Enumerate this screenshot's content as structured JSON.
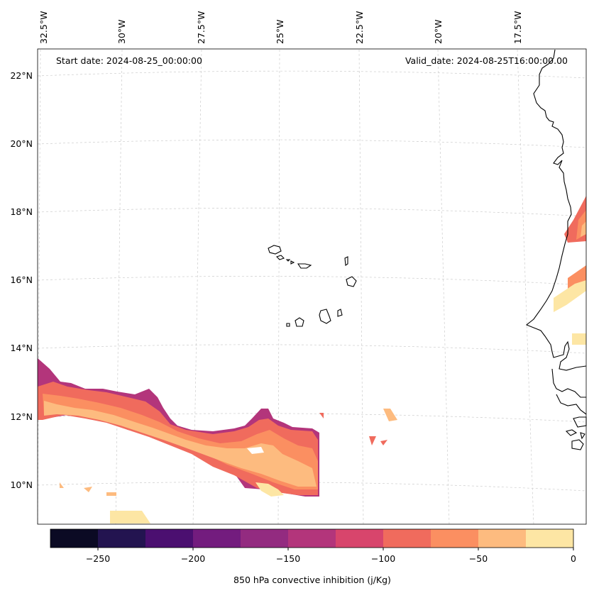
{
  "header": {
    "start_date": "Start date: 2024-08-25_00:00:00",
    "valid_date": "Valid_date: 2024-08-25T16:00:00.00"
  },
  "axes": {
    "lon_labels": [
      "32.5°W",
      "30°W",
      "27.5°W",
      "25°W",
      "22.5°W",
      "20°W",
      "17.5°W"
    ],
    "lat_labels": [
      "22°N",
      "20°N",
      "18°N",
      "16°N",
      "14°N",
      "12°N",
      "10°N"
    ]
  },
  "colorbar": {
    "label": "850 hPa convective inhibition (j/Kg)",
    "ticks": [
      "−250",
      "−200",
      "−150",
      "−100",
      "−50",
      "0"
    ],
    "colors": [
      "#0b0a24",
      "#231450",
      "#4b0f70",
      "#731c7e",
      "#932b80",
      "#b3357b",
      "#d8456c",
      "#f06b5d",
      "#fb8f61",
      "#fdbb7f",
      "#fde6a4"
    ]
  },
  "chart_data": {
    "type": "heatmap",
    "title": "850 hPa convective inhibition",
    "variable": "850 hPa convective inhibition",
    "units": "j/Kg",
    "start_date": "2024-08-25_00:00:00",
    "valid_date": "2024-08-25T16:00:00.00",
    "lon_range": [
      -33,
      -16
    ],
    "lat_range": [
      9,
      22.8
    ],
    "colorbar_range": [
      -275,
      0
    ],
    "levels": [
      -275,
      -250,
      -225,
      -200,
      -175,
      -150,
      -125,
      -100,
      -75,
      -50,
      -25,
      0
    ]
  }
}
